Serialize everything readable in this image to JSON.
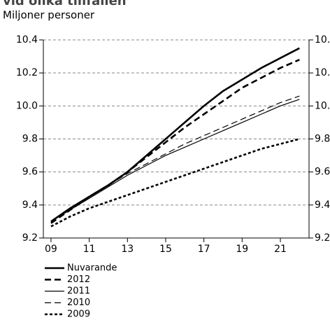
{
  "chart_data": {
    "type": "line",
    "title": "vid olika tillfällen",
    "subtitle": "Miljoner personer",
    "x": [
      2009,
      2010,
      2011,
      2012,
      2013,
      2014,
      2015,
      2016,
      2017,
      2018,
      2019,
      2020,
      2021,
      2022
    ],
    "xlim": [
      2008.6,
      2022.5
    ],
    "xticks": [
      {
        "value": 2009,
        "label": "09"
      },
      {
        "value": 2011,
        "label": "11"
      },
      {
        "value": 2013,
        "label": "13"
      },
      {
        "value": 2015,
        "label": "15"
      },
      {
        "value": 2017,
        "label": "17"
      },
      {
        "value": 2019,
        "label": "19"
      },
      {
        "value": 2021,
        "label": "21"
      }
    ],
    "ylim": [
      9.2,
      10.4
    ],
    "yticks": [
      {
        "value": 9.2,
        "label": "9.2"
      },
      {
        "value": 9.4,
        "label": "9.4"
      },
      {
        "value": 9.6,
        "label": "9.6"
      },
      {
        "value": 9.8,
        "label": "9.8"
      },
      {
        "value": 10.0,
        "label": "10.0"
      },
      {
        "value": 10.2,
        "label": "10.2"
      },
      {
        "value": 10.4,
        "label": "10.4"
      }
    ],
    "grid": true,
    "legend": "bottom-left",
    "series": [
      {
        "name": "Nuvarande",
        "color": "#000000",
        "style": "solid-thick",
        "values": [
          9.3,
          9.38,
          9.45,
          9.52,
          9.6,
          9.7,
          9.8,
          9.9,
          10.0,
          10.09,
          10.16,
          10.23,
          10.29,
          10.35
        ]
      },
      {
        "name": "2012",
        "color": "#000000",
        "style": "dashed-thick",
        "values": [
          9.29,
          9.37,
          9.45,
          9.52,
          9.6,
          9.69,
          9.78,
          9.87,
          9.95,
          10.03,
          10.11,
          10.17,
          10.23,
          10.28
        ]
      },
      {
        "name": "2011",
        "color": "#000000",
        "style": "solid-thin",
        "values": [
          9.3,
          9.37,
          9.44,
          9.51,
          9.58,
          9.64,
          9.7,
          9.75,
          9.8,
          9.85,
          9.9,
          9.95,
          10.0,
          10.04
        ]
      },
      {
        "name": "2010",
        "color": "#000000",
        "style": "dashed-thin",
        "values": [
          9.3,
          9.38,
          9.45,
          9.52,
          9.59,
          9.65,
          9.71,
          9.77,
          9.82,
          9.87,
          9.92,
          9.97,
          10.02,
          10.06
        ]
      },
      {
        "name": "2009",
        "color": "#000000",
        "style": "dotted-thick",
        "values": [
          9.27,
          9.33,
          9.38,
          9.42,
          9.46,
          9.5,
          9.54,
          9.58,
          9.62,
          9.66,
          9.7,
          9.74,
          9.77,
          9.8
        ]
      }
    ]
  }
}
